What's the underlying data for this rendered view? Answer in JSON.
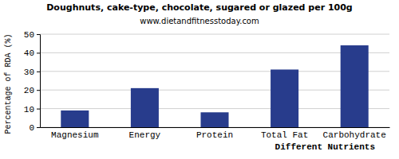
{
  "chart_data": {
    "type": "bar",
    "title": "Doughnuts, cake-type, chocolate, sugared or glazed per 100g",
    "subtitle": "www.dietandfitnesstoday.com",
    "x_label": "Different Nutrients",
    "y_label": "Percentage of RDA (%)",
    "categories": [
      "Magnesium",
      "Energy",
      "Protein",
      "Total Fat",
      "Carbohydrate"
    ],
    "values": [
      9,
      21,
      8,
      31,
      44
    ],
    "color": "#283c8c",
    "ylim": [
      0,
      50
    ],
    "yticks": [
      0,
      10,
      20,
      30,
      40,
      50
    ],
    "grid": true
  }
}
